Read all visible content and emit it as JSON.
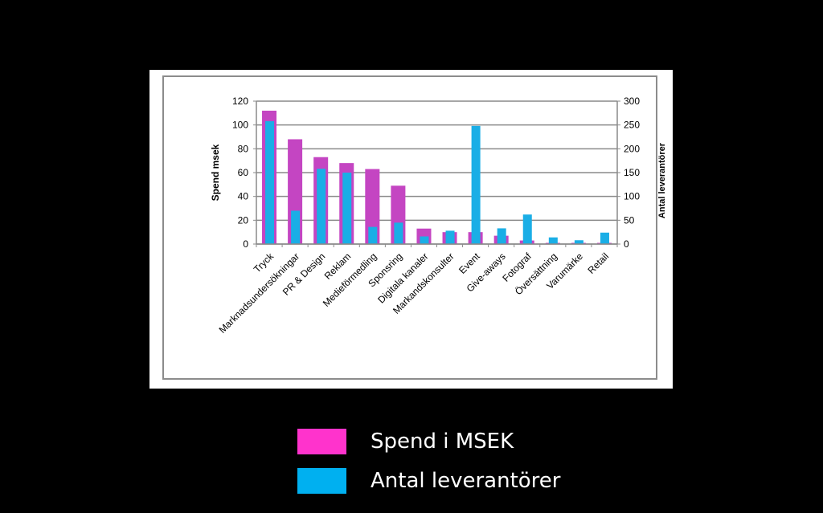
{
  "chart_data": {
    "type": "bar",
    "title": "",
    "xlabel": "",
    "ylabel": "Spend msek",
    "y2label": "Antal leverantörer",
    "ylim": [
      0,
      120
    ],
    "y2lim": [
      0,
      300
    ],
    "yticks": [
      "0",
      "20",
      "40",
      "60",
      "80",
      "100",
      "120"
    ],
    "y2ticks": [
      "0",
      "50",
      "100",
      "150",
      "200",
      "250",
      "300"
    ],
    "categories": [
      "Tryck",
      "Marknadsundersökningar",
      "PR & Design",
      "Reklam",
      "Medieförmedling",
      "Sponsring",
      "Digitala kanaler",
      "Markandskonsulter",
      "Event",
      "Give-aways",
      "Fotograf",
      "Översättning",
      "Varumärke",
      "Retail"
    ],
    "series": [
      {
        "name": "Spend i MSEK",
        "axis": "left",
        "color": "#c445c2",
        "values": [
          112,
          88,
          73,
          68,
          63,
          49,
          13,
          10,
          10,
          7,
          3,
          1,
          1,
          1
        ]
      },
      {
        "name": "Antal leverantörer",
        "axis": "right",
        "color": "#1aaee6",
        "values": [
          258,
          70,
          158,
          150,
          36,
          45,
          16,
          28,
          248,
          33,
          62,
          14,
          8,
          24
        ]
      }
    ],
    "grid": true
  },
  "legend": {
    "items": [
      {
        "label": "Spend i MSEK",
        "color": "#ff33cc"
      },
      {
        "label": "Antal leverantörer",
        "color": "#00b0f0"
      }
    ]
  }
}
